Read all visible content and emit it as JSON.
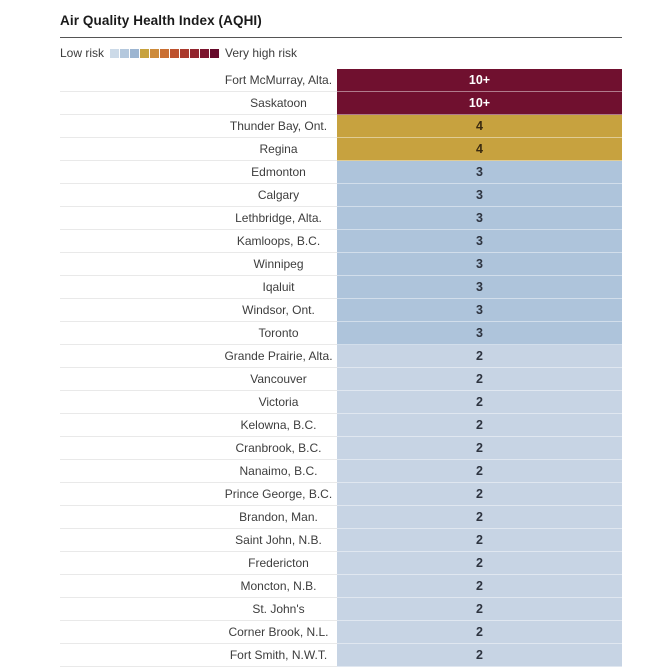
{
  "header": {
    "title": "Air Quality Health Index (AQHI)"
  },
  "legend": {
    "low_label": "Low risk",
    "high_label": "Very high risk",
    "scale_colors": [
      "#ccdae8",
      "#b4c8dd",
      "#9cb5d1",
      "#c7a23f",
      "#cd8b3b",
      "#c96f33",
      "#bd522e",
      "#aa3a2d",
      "#92252e",
      "#7c152e",
      "#65092a"
    ]
  },
  "chart_data": {
    "type": "table",
    "title": "Air Quality Health Index (AQHI)",
    "legend_low": "Low risk",
    "legend_high": "Very high risk",
    "value_colors": {
      "10+": "#70102f",
      "4": "#c7a23f",
      "3": "#aec4db",
      "2": "#c7d4e4"
    },
    "rows": [
      {
        "city": "Fort McMurray, Alta.",
        "value": "10+",
        "color": "#70102f",
        "text_color": "#ffffff"
      },
      {
        "city": "Saskatoon",
        "value": "10+",
        "color": "#70102f",
        "text_color": "#ffffff"
      },
      {
        "city": "Thunder Bay, Ont.",
        "value": "4",
        "color": "#c7a23f",
        "text_color": "#3a2a10"
      },
      {
        "city": "Regina",
        "value": "4",
        "color": "#c7a23f",
        "text_color": "#3a2a10"
      },
      {
        "city": "Edmonton",
        "value": "3",
        "color": "#aec4db",
        "text_color": "#2e3440"
      },
      {
        "city": "Calgary",
        "value": "3",
        "color": "#aec4db",
        "text_color": "#2e3440"
      },
      {
        "city": "Lethbridge, Alta.",
        "value": "3",
        "color": "#aec4db",
        "text_color": "#2e3440"
      },
      {
        "city": "Kamloops, B.C.",
        "value": "3",
        "color": "#aec4db",
        "text_color": "#2e3440"
      },
      {
        "city": "Winnipeg",
        "value": "3",
        "color": "#aec4db",
        "text_color": "#2e3440"
      },
      {
        "city": "Iqaluit",
        "value": "3",
        "color": "#aec4db",
        "text_color": "#2e3440"
      },
      {
        "city": "Windsor, Ont.",
        "value": "3",
        "color": "#aec4db",
        "text_color": "#2e3440"
      },
      {
        "city": "Toronto",
        "value": "3",
        "color": "#aec4db",
        "text_color": "#2e3440"
      },
      {
        "city": "Grande Prairie, Alta.",
        "value": "2",
        "color": "#c7d4e4",
        "text_color": "#2e3440"
      },
      {
        "city": "Vancouver",
        "value": "2",
        "color": "#c7d4e4",
        "text_color": "#2e3440"
      },
      {
        "city": "Victoria",
        "value": "2",
        "color": "#c7d4e4",
        "text_color": "#2e3440"
      },
      {
        "city": "Kelowna, B.C.",
        "value": "2",
        "color": "#c7d4e4",
        "text_color": "#2e3440"
      },
      {
        "city": "Cranbrook, B.C.",
        "value": "2",
        "color": "#c7d4e4",
        "text_color": "#2e3440"
      },
      {
        "city": "Nanaimo, B.C.",
        "value": "2",
        "color": "#c7d4e4",
        "text_color": "#2e3440"
      },
      {
        "city": "Prince George, B.C.",
        "value": "2",
        "color": "#c7d4e4",
        "text_color": "#2e3440"
      },
      {
        "city": "Brandon, Man.",
        "value": "2",
        "color": "#c7d4e4",
        "text_color": "#2e3440"
      },
      {
        "city": "Saint John, N.B.",
        "value": "2",
        "color": "#c7d4e4",
        "text_color": "#2e3440"
      },
      {
        "city": "Fredericton",
        "value": "2",
        "color": "#c7d4e4",
        "text_color": "#2e3440"
      },
      {
        "city": "Moncton, N.B.",
        "value": "2",
        "color": "#c7d4e4",
        "text_color": "#2e3440"
      },
      {
        "city": "St. John's",
        "value": "2",
        "color": "#c7d4e4",
        "text_color": "#2e3440"
      },
      {
        "city": "Corner Brook, N.L.",
        "value": "2",
        "color": "#c7d4e4",
        "text_color": "#2e3440"
      },
      {
        "city": "Fort Smith, N.W.T.",
        "value": "2",
        "color": "#c7d4e4",
        "text_color": "#2e3440"
      }
    ]
  }
}
